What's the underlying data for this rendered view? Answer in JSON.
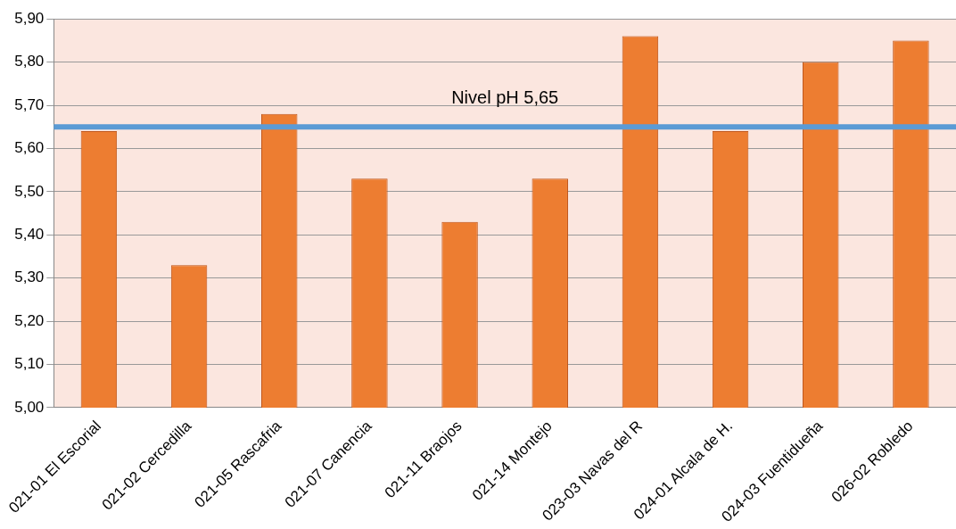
{
  "chart_data": {
    "type": "bar",
    "categories": [
      "021-01 El Escorial",
      "021-02 Cercedilla",
      "021-05 Rascafria",
      "021-07 Canencia",
      "021-11 Braojos",
      "021-14 Montejo",
      "023-03 Navas del R",
      "024-01 Alcala de H.",
      "024-03 Fuentidueña",
      "026-02 Robledo"
    ],
    "values": [
      5.64,
      5.33,
      5.68,
      5.53,
      5.43,
      5.53,
      5.86,
      5.64,
      5.8,
      5.85
    ],
    "color": "#ed7d31",
    "ylim": [
      5.0,
      5.9
    ],
    "yticks": [
      {
        "value": 5.0,
        "label": "5,00"
      },
      {
        "value": 5.1,
        "label": "5,10"
      },
      {
        "value": 5.2,
        "label": "5,20"
      },
      {
        "value": 5.3,
        "label": "5,30"
      },
      {
        "value": 5.4,
        "label": "5,40"
      },
      {
        "value": 5.5,
        "label": "5,50"
      },
      {
        "value": 5.6,
        "label": "5,60"
      },
      {
        "value": 5.7,
        "label": "5,70"
      },
      {
        "value": 5.8,
        "label": "5,80"
      },
      {
        "value": 5.9,
        "label": "5,90"
      }
    ],
    "ref_lines": [
      {
        "axis": "y",
        "value": 5.65,
        "label": "Nivel pH 5,65",
        "color": "#5b9bd5"
      }
    ],
    "grid": "y",
    "legend": false
  }
}
